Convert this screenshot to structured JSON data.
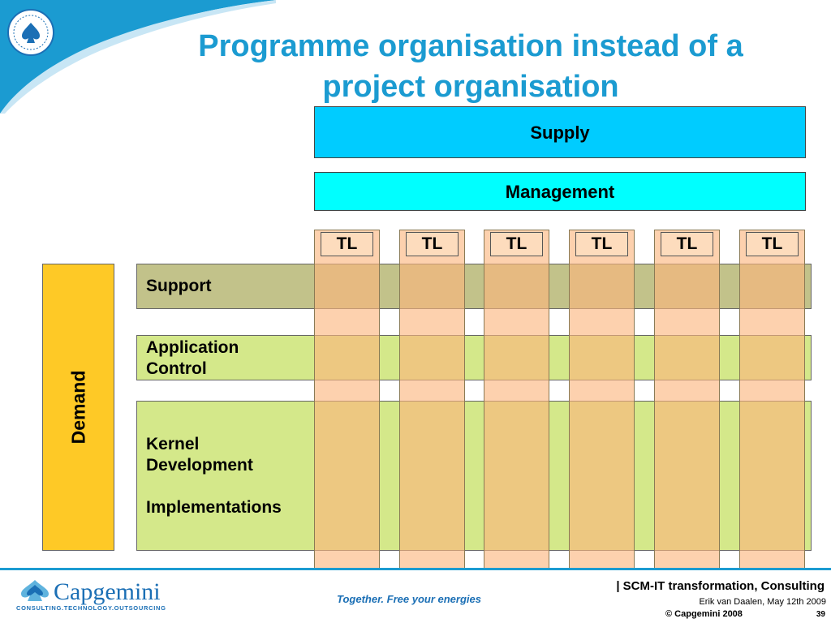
{
  "title": "Programme organisation instead of a project organisation",
  "supply": "Supply",
  "management": "Management",
  "team_leads": [
    "TL",
    "TL",
    "TL",
    "TL",
    "TL",
    "TL"
  ],
  "demand": "Demand",
  "rows": {
    "support": "Support",
    "application_control": [
      "Application",
      "Control"
    ],
    "kernel": [
      "Kernel",
      "Development",
      "Implementations"
    ]
  },
  "footer": {
    "logo_name": "Capgemini",
    "logo_tagline": "CONSULTING.TECHNOLOGY.OUTSOURCING",
    "slogan": "Together. Free your energies",
    "presentation_title": "| SCM-IT transformation, Consulting",
    "author_date": "Erik van Daalen, May 12th 2009",
    "copyright": "© Capgemini 2008",
    "page_number": "39"
  },
  "colors": {
    "title_blue": "#1b9bd1",
    "supply": "#00ccff",
    "management": "#00ffff",
    "demand": "#fec926",
    "support_row": "#c2c28a",
    "development_rows": "#d4e88a",
    "team_columns": "#fbb47c"
  },
  "icons": [
    "capgemini-emblem-icon",
    "capgemini-spade-icon"
  ]
}
